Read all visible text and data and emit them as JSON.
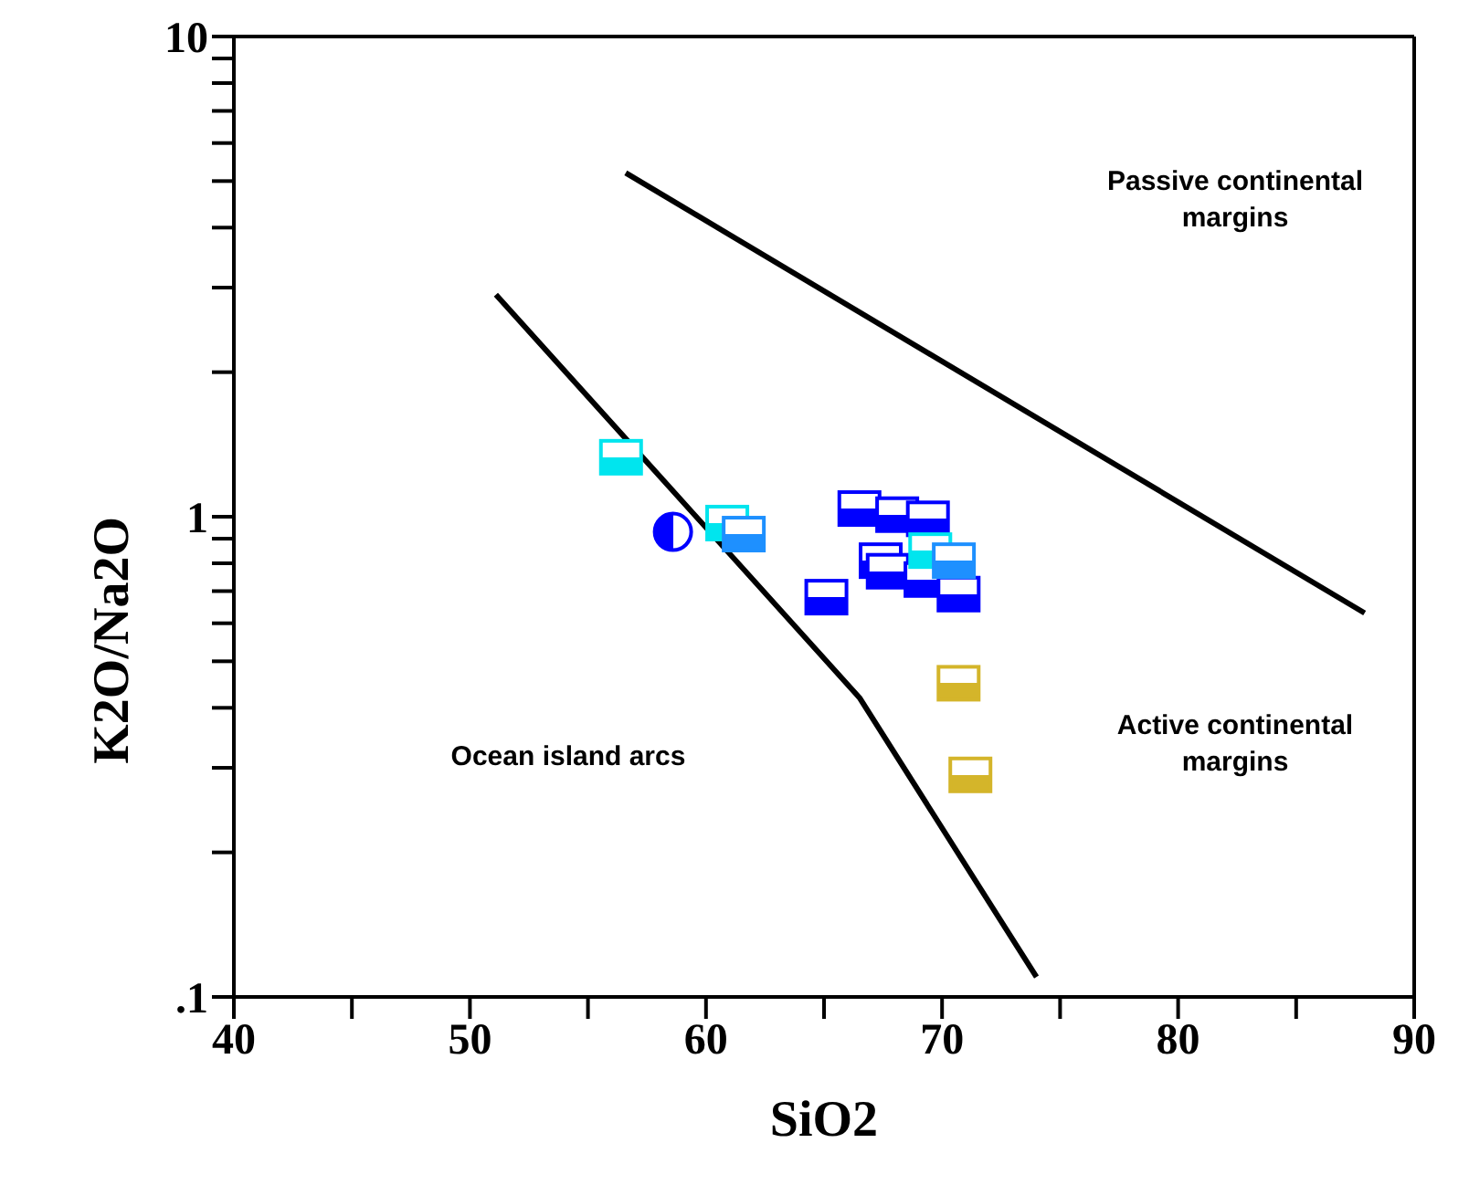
{
  "chart_data": {
    "type": "scatter",
    "xlabel": "SiO2",
    "ylabel": "K2O/Na2O",
    "log": "y",
    "xlim": [
      40,
      90
    ],
    "xticks": [
      40,
      {
        "value": 45,
        "label": null
      },
      50,
      {
        "value": 55,
        "label": null
      },
      60,
      {
        "value": 65,
        "label": null
      },
      70,
      {
        "value": 75,
        "label": null
      },
      80,
      {
        "value": 85,
        "label": null
      },
      90
    ],
    "ylim": [
      0.1,
      10
    ],
    "yticks": [
      {
        "value": 0.1,
        "label": ".1"
      },
      {
        "value": 0.2,
        "label": null
      },
      {
        "value": 0.3,
        "label": null
      },
      {
        "value": 0.4,
        "label": null
      },
      {
        "value": 0.5,
        "label": null
      },
      {
        "value": 0.6,
        "label": null
      },
      {
        "value": 0.7,
        "label": null
      },
      {
        "value": 0.8,
        "label": null
      },
      {
        "value": 0.9,
        "label": null
      },
      1,
      {
        "value": 2,
        "label": null
      },
      {
        "value": 3,
        "label": null
      },
      {
        "value": 4,
        "label": null
      },
      {
        "value": 5,
        "label": null
      },
      {
        "value": 6,
        "label": null
      },
      {
        "value": 7,
        "label": null
      },
      {
        "value": 8,
        "label": null
      },
      {
        "value": 9,
        "label": null
      },
      10
    ],
    "series": [
      {
        "type": "line",
        "color": "#000000",
        "marker": "none",
        "x": [
          51.1,
          66.5,
          74.0
        ],
        "values": [
          2.9,
          0.42,
          0.11
        ]
      },
      {
        "type": "line",
        "color": "#000000",
        "marker": "none",
        "x": [
          56.6,
          87.9
        ],
        "values": [
          5.2,
          0.63
        ]
      },
      {
        "color": "#0000ff",
        "marker": "square",
        "x": [
          65.1,
          66.5,
          68.1,
          69.4,
          67.4,
          67.7,
          69.3,
          70.7
        ],
        "values": [
          0.68,
          1.04,
          1.01,
          0.99,
          0.81,
          0.77,
          0.74,
          0.69
        ]
      },
      {
        "color": "#00e5ee",
        "marker": "square",
        "x": [
          56.4,
          60.9,
          69.5
        ],
        "values": [
          1.33,
          0.97,
          0.85
        ]
      },
      {
        "color": "#1e90ff",
        "marker": "square",
        "x": [
          61.6,
          70.5
        ],
        "values": [
          0.92,
          0.81
        ]
      },
      {
        "color": "#0000ff",
        "marker": "circle",
        "x": [
          58.6
        ],
        "values": [
          0.93
        ]
      },
      {
        "color": "#d4b52a",
        "marker": "square",
        "x": [
          70.7,
          71.2
        ],
        "values": [
          0.45,
          0.29
        ]
      }
    ],
    "annotations": [
      "Passive continental margins",
      "Active continental margins",
      "Ocean island arcs"
    ]
  }
}
